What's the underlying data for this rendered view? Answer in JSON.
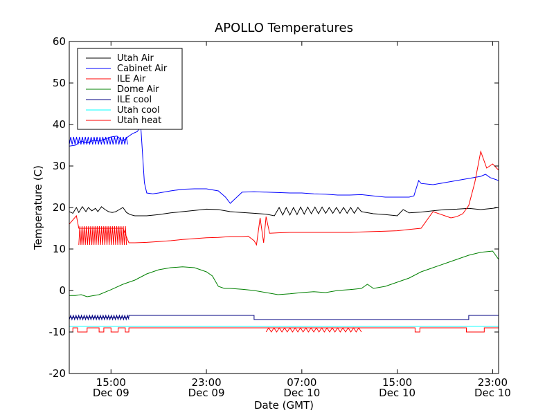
{
  "chart_data": {
    "type": "line",
    "title": "APOLLO Temperatures",
    "xlabel": "Date (GMT)",
    "ylabel": "Temperature (C)",
    "ylim": [
      -20,
      60
    ],
    "xlim": [
      11.5,
      47.5
    ],
    "x_units": "hours since Dec 09 00:00 GMT",
    "yticks": [
      {
        "value": 60,
        "label": "60"
      },
      {
        "value": 50,
        "label": "50"
      },
      {
        "value": 40,
        "label": "40"
      },
      {
        "value": 30,
        "label": "30"
      },
      {
        "value": 20,
        "label": "20"
      },
      {
        "value": 10,
        "label": "10"
      },
      {
        "value": 0,
        "label": "0"
      },
      {
        "value": -10,
        "label": "-10"
      },
      {
        "value": -20,
        "label": "-20"
      }
    ],
    "xticks": [
      {
        "value": 15,
        "time": "15:00",
        "date": "Dec 09"
      },
      {
        "value": 23,
        "time": "23:00",
        "date": "Dec 09"
      },
      {
        "value": 31,
        "time": "07:00",
        "date": "Dec 10"
      },
      {
        "value": 39,
        "time": "15:00",
        "date": "Dec 10"
      },
      {
        "value": 47,
        "time": "23:00",
        "date": "Dec 10"
      }
    ],
    "legend_position": "top-left",
    "series": [
      {
        "name": "Utah Air",
        "color": "#000000",
        "id": "utah-air",
        "x": [
          11.5,
          11.8,
          12.1,
          12.3,
          12.6,
          12.9,
          13.1,
          13.4,
          13.7,
          13.9,
          14.2,
          14.5,
          14.8,
          15.1,
          15.4,
          15.7,
          16.0,
          16.3,
          16.6,
          17.0,
          18.0,
          19.0,
          20.0,
          21.0,
          22.0,
          23.0,
          24.0,
          25.0,
          26.0,
          27.0,
          28.0,
          28.7,
          29.1,
          29.4,
          29.7,
          30.0,
          30.3,
          30.6,
          30.9,
          31.2,
          31.5,
          31.8,
          32.1,
          32.4,
          32.7,
          33.0,
          33.3,
          33.6,
          33.9,
          34.2,
          34.5,
          34.8,
          35.1,
          35.4,
          35.7,
          36.0,
          37.0,
          38.0,
          39.0,
          39.5,
          40.0,
          41.0,
          42.0,
          43.0,
          44.0,
          45.0,
          46.0,
          47.0,
          47.5
        ],
        "y": [
          19.0,
          18.6,
          20.0,
          18.8,
          20.2,
          19.0,
          20.0,
          19.2,
          19.8,
          19.0,
          20.2,
          19.5,
          19.0,
          18.8,
          19.0,
          19.5,
          20.0,
          18.8,
          18.3,
          18.0,
          18.0,
          18.3,
          18.7,
          19.0,
          19.3,
          19.6,
          19.5,
          19.0,
          18.8,
          18.6,
          18.4,
          18.0,
          20.0,
          18.2,
          20.0,
          18.2,
          20.0,
          18.3,
          20.1,
          18.4,
          20.1,
          18.5,
          20.1,
          18.5,
          20.1,
          18.6,
          20.0,
          18.6,
          20.0,
          18.6,
          20.0,
          18.6,
          20.0,
          18.6,
          20.0,
          19.0,
          18.5,
          18.3,
          18.0,
          19.5,
          18.7,
          18.9,
          19.2,
          19.5,
          19.6,
          19.8,
          19.5,
          19.8,
          20.0
        ]
      },
      {
        "name": "Cabinet Air",
        "color": "#0000ff",
        "id": "cabinet-air",
        "x": [
          11.5,
          12.0,
          12.5,
          13.0,
          13.5,
          14.0,
          14.5,
          15.0,
          15.5,
          16.0,
          16.4,
          16.8,
          17.2,
          17.5,
          17.8,
          18.0,
          18.5,
          19.0,
          20.0,
          21.0,
          22.0,
          23.0,
          24.0,
          24.4,
          24.6,
          25.0,
          26.0,
          27.0,
          28.0,
          29.0,
          30.0,
          31.0,
          32.0,
          33.0,
          34.0,
          35.0,
          36.0,
          37.0,
          38.0,
          39.0,
          40.0,
          40.4,
          40.8,
          41.0,
          42.0,
          43.0,
          44.0,
          45.0,
          46.0,
          46.4,
          46.8,
          47.0,
          47.5
        ],
        "y": [
          34.8,
          35.0,
          36.0,
          35.5,
          36.2,
          36.0,
          36.5,
          37.0,
          37.2,
          36.0,
          37.0,
          37.8,
          38.3,
          39.5,
          26.0,
          23.5,
          23.3,
          23.5,
          24.0,
          24.4,
          24.5,
          24.5,
          24.0,
          23.0,
          22.5,
          21.0,
          23.7,
          23.8,
          23.7,
          23.6,
          23.5,
          23.5,
          23.3,
          23.2,
          23.0,
          23.0,
          23.1,
          22.8,
          22.5,
          22.5,
          22.5,
          22.8,
          26.5,
          25.8,
          25.5,
          26.0,
          26.5,
          27.0,
          27.5,
          28.0,
          27.2,
          27.0,
          26.5
        ]
      },
      {
        "name": "ILE Air",
        "color": "#ff0000",
        "id": "ile-air",
        "x": [
          11.5,
          12.1,
          12.3,
          13.0,
          14.0,
          15.0,
          16.0,
          16.5,
          17.0,
          18.0,
          19.0,
          20.0,
          21.0,
          22.0,
          23.0,
          24.0,
          25.0,
          26.0,
          26.5,
          27.0,
          27.2,
          27.5,
          27.8,
          28.0,
          28.3,
          29.0,
          30.0,
          31.0,
          32.0,
          33.0,
          34.0,
          35.0,
          36.0,
          37.0,
          38.0,
          39.0,
          40.0,
          41.0,
          42.0,
          43.0,
          43.5,
          44.0,
          44.5,
          45.0,
          45.5,
          46.0,
          46.5,
          47.0,
          47.5
        ],
        "y": [
          16.0,
          18.0,
          15.0,
          15.0,
          15.0,
          15.0,
          15.0,
          11.5,
          11.5,
          11.6,
          11.8,
          12.0,
          12.3,
          12.5,
          12.7,
          12.8,
          13.0,
          13.0,
          13.1,
          12.0,
          11.0,
          17.5,
          11.5,
          17.8,
          13.8,
          13.9,
          14.0,
          14.0,
          14.0,
          14.0,
          14.0,
          14.0,
          14.1,
          14.2,
          14.3,
          14.4,
          14.7,
          15.0,
          19.0,
          18.0,
          17.5,
          17.8,
          18.5,
          20.5,
          26.0,
          33.5,
          29.5,
          30.5,
          29.0
        ]
      },
      {
        "name": "Dome Air",
        "color": "#008000",
        "id": "dome-air",
        "x": [
          11.5,
          12.0,
          12.5,
          13.0,
          14.0,
          15.0,
          16.0,
          17.0,
          18.0,
          19.0,
          20.0,
          21.0,
          22.0,
          23.0,
          23.5,
          24.0,
          24.5,
          25.0,
          26.0,
          27.0,
          28.0,
          29.0,
          30.0,
          31.0,
          32.0,
          33.0,
          34.0,
          35.0,
          36.0,
          36.5,
          37.0,
          38.0,
          39.0,
          40.0,
          41.0,
          42.0,
          43.0,
          44.0,
          45.0,
          46.0,
          47.0,
          47.5
        ],
        "y": [
          -1.2,
          -1.2,
          -1.0,
          -1.5,
          -1.0,
          0.2,
          1.5,
          2.5,
          4.0,
          5.0,
          5.5,
          5.7,
          5.5,
          4.5,
          3.5,
          1.0,
          0.5,
          0.5,
          0.3,
          0.0,
          -0.5,
          -1.0,
          -0.8,
          -0.5,
          -0.3,
          -0.5,
          0.0,
          0.2,
          0.5,
          1.5,
          0.5,
          1.0,
          2.0,
          3.0,
          4.5,
          5.5,
          6.5,
          7.5,
          8.5,
          9.2,
          9.5,
          7.5
        ]
      },
      {
        "name": "ILE cool",
        "color": "#000080",
        "id": "ile-cool",
        "x": [
          11.5,
          16.5,
          16.5,
          27.0,
          27.0,
          45.0,
          45.0,
          47.5
        ],
        "y": [
          -6.5,
          -6.5,
          -6.0,
          -6.0,
          -7.0,
          -7.0,
          -6.0,
          -6.0
        ]
      },
      {
        "name": "Utah cool",
        "color": "#00ffff",
        "id": "utah-cool",
        "x": [
          11.5,
          47.5
        ],
        "y": [
          -8.6,
          -8.6
        ]
      },
      {
        "name": "Utah heat",
        "color": "#ff0000",
        "id": "utah-heat",
        "x": [
          11.5,
          11.8,
          11.8,
          12.2,
          12.2,
          13.0,
          13.0,
          14.0,
          14.0,
          14.4,
          14.4,
          15.0,
          15.0,
          15.6,
          15.6,
          16.2,
          16.2,
          16.5,
          16.5,
          40.5,
          40.5,
          40.9,
          40.9,
          44.8,
          44.8,
          46.3,
          46.3,
          47.5
        ],
        "y": [
          -10.0,
          -10.0,
          -9.0,
          -9.0,
          -10.0,
          -10.0,
          -9.0,
          -9.0,
          -10.0,
          -10.0,
          -9.0,
          -9.0,
          -10.0,
          -10.0,
          -9.0,
          -9.0,
          -10.0,
          -10.0,
          -9.0,
          -9.0,
          -10.0,
          -10.0,
          -9.0,
          -9.0,
          -10.0,
          -10.0,
          -9.0,
          -9.0
        ]
      }
    ],
    "oscillations": [
      {
        "series": "ile-air",
        "x_range": [
          12.3,
          16.3
        ],
        "low": 11.0,
        "high": 15.5,
        "cycles": 22
      },
      {
        "series": "cabinet-air",
        "x_range": [
          11.5,
          16.4
        ],
        "low": 35.2,
        "high": 37.0,
        "cycles": 20
      },
      {
        "series": "ile-cool",
        "x_range": [
          11.5,
          16.5
        ],
        "low": -7.0,
        "high": -6.0,
        "cycles": 22
      },
      {
        "series": "utah-heat",
        "x_range": [
          28.0,
          36.0
        ],
        "low": -10.0,
        "high": -9.0,
        "cycles": 18
      }
    ]
  }
}
